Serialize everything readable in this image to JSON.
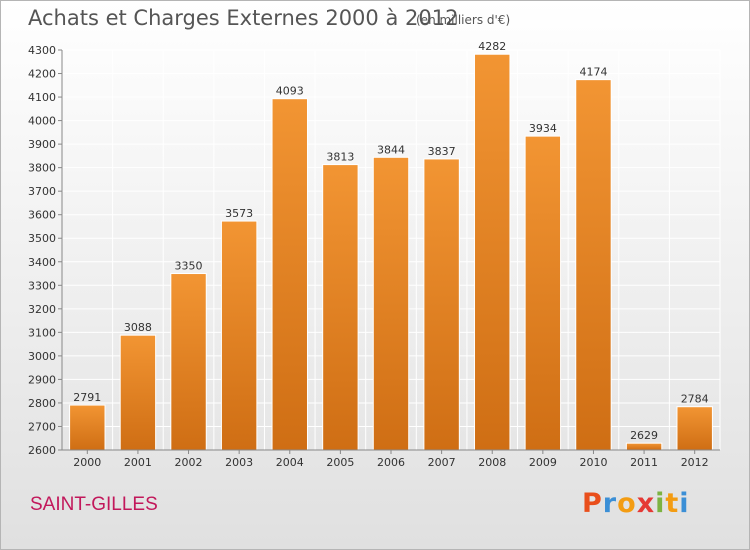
{
  "header": {
    "title": "Achats et Charges Externes 2000 à 2012",
    "subtitle": "(en milliers d'€)"
  },
  "footer": {
    "commune": "SAINT-GILLES",
    "logo_letters": [
      "P",
      "r",
      "o",
      "x",
      "i",
      "t",
      "i"
    ],
    "logo_colors": [
      "#e94e1b",
      "#3b8fd6",
      "#f39c12",
      "#e53935",
      "#7cb342",
      "#f39c12",
      "#3b8fd6"
    ]
  },
  "chart_data": {
    "type": "bar",
    "title": "Achats et Charges Externes 2000 à 2012",
    "subtitle": "(en milliers d'€)",
    "xlabel": "",
    "ylabel": "",
    "categories": [
      "2000",
      "2001",
      "2002",
      "2003",
      "2004",
      "2005",
      "2006",
      "2007",
      "2008",
      "2009",
      "2010",
      "2011",
      "2012"
    ],
    "values": [
      2791,
      3088,
      3350,
      3573,
      4093,
      3813,
      3844,
      3837,
      4282,
      3934,
      4174,
      2629,
      2784
    ],
    "ylim": [
      2600,
      4300
    ],
    "yticks": [
      2600,
      2700,
      2800,
      2900,
      3000,
      3100,
      3200,
      3300,
      3400,
      3500,
      3600,
      3700,
      3800,
      3900,
      4000,
      4100,
      4200,
      4300
    ],
    "grid": true,
    "bar_color": "#f29533",
    "bar_color_dark": "#cf6e14"
  }
}
